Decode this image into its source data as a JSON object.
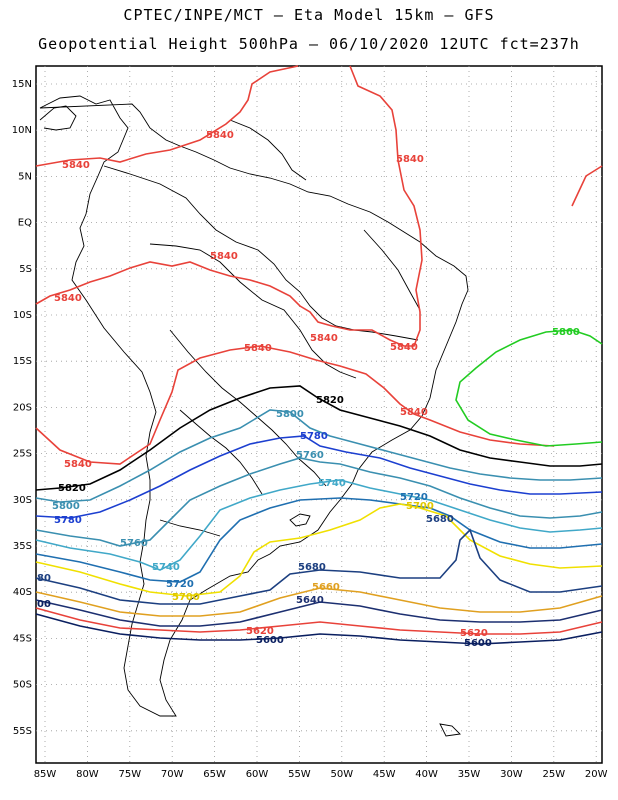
{
  "title": {
    "line1": "CPTEC/INPE/MCT –  Eta Model 15km – GFS",
    "line2": "Geopotential Height 500hPa – 06/10/2020 12UTC fct=237h"
  },
  "axes": {
    "lat_labels": [
      "15N",
      "10N",
      "5N",
      "EQ",
      "5S",
      "10S",
      "15S",
      "20S",
      "25S",
      "30S",
      "35S",
      "40S",
      "45S",
      "50S",
      "55S"
    ],
    "lon_labels": [
      "85W",
      "80W",
      "75W",
      "70W",
      "65W",
      "60W",
      "55W",
      "50W",
      "45W",
      "40W",
      "35W",
      "30W",
      "25W",
      "20W"
    ]
  },
  "contours": [
    {
      "value": "5860",
      "color": "#22cc22"
    },
    {
      "value": "5840",
      "color": "#e8423a"
    },
    {
      "value": "5820",
      "color": "#000000"
    },
    {
      "value": "5800",
      "color": "#3a8fb0"
    },
    {
      "value": "5780",
      "color": "#1c3fd0"
    },
    {
      "value": "5760",
      "color": "#3a8fb0"
    },
    {
      "value": "5740",
      "color": "#40a8c8"
    },
    {
      "value": "5720",
      "color": "#1f6fb0"
    },
    {
      "value": "5700",
      "color": "#f0e000"
    },
    {
      "value": "5680",
      "color": "#1c3f80"
    },
    {
      "value": "5660",
      "color": "#e0a020"
    },
    {
      "value": "5640",
      "color": "#1c2f70"
    },
    {
      "value": "5620",
      "color": "#e8423a"
    },
    {
      "value": "5600",
      "color": "#0a1f60"
    }
  ],
  "labels": {
    "l5840a": "5840",
    "l5840b": "5840",
    "l5840c": "5840",
    "l5840d": "5840",
    "l5840e": "5840",
    "l5840f": "5840",
    "l5840g": "5840",
    "l5840h": "5840",
    "l5840i": "5840",
    "l5840j": "5840",
    "l5860": "5860",
    "l5820": "5820",
    "l5820b": "5820",
    "l5800a": "5800",
    "l5800b": "5800",
    "l5780a": "5780",
    "l5780b": "5780",
    "l5760a": "5760",
    "l5760b": "5760",
    "l5740a": "5740",
    "l5740b": "5740",
    "l5720a": "5720",
    "l5720b": "5720",
    "l5700a": "5700",
    "l5700b": "5700",
    "l5680a": "5680",
    "l5680b": "5680",
    "l5680c": "80",
    "l5660": "5660",
    "l5640": "5640",
    "l5600c": "00",
    "l5620a": "5620",
    "l5620b": "5620",
    "l5600a": "5600",
    "l5600b": "5600"
  }
}
